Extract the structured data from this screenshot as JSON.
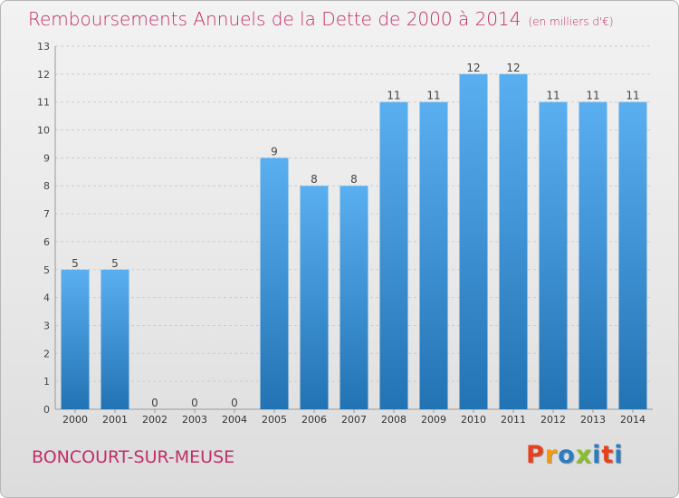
{
  "header": {
    "title": "Remboursements Annuels de la Dette de 2000 à 2014",
    "unit": "(en milliers d'€)"
  },
  "footer": {
    "commune": "BONCOURT-SUR-MEUSE",
    "brand": "Proxiti",
    "brand_colors": [
      "#e8401c",
      "#f39c12",
      "#2a7dc2",
      "#8bbf2a",
      "#2a7dc2",
      "#e8401c",
      "#2a7dc2"
    ]
  },
  "colors": {
    "bar_top": "#5aaff0",
    "bar_bottom": "#2273b4",
    "title": "#c12e66",
    "grid": "#cccccc"
  },
  "chart_data": {
    "type": "bar",
    "categories": [
      "2000",
      "2001",
      "2002",
      "2003",
      "2004",
      "2005",
      "2006",
      "2007",
      "2008",
      "2009",
      "2010",
      "2011",
      "2012",
      "2013",
      "2014"
    ],
    "values": [
      5,
      5,
      0,
      0,
      0,
      9,
      8,
      8,
      11,
      11,
      12,
      12,
      11,
      11,
      11
    ],
    "title": "Remboursements Annuels de la Dette de 2000 à 2014",
    "ylim": [
      0,
      13
    ],
    "yticks": [
      0,
      1,
      2,
      3,
      4,
      5,
      6,
      7,
      8,
      9,
      10,
      11,
      12,
      13
    ],
    "grid": true
  }
}
